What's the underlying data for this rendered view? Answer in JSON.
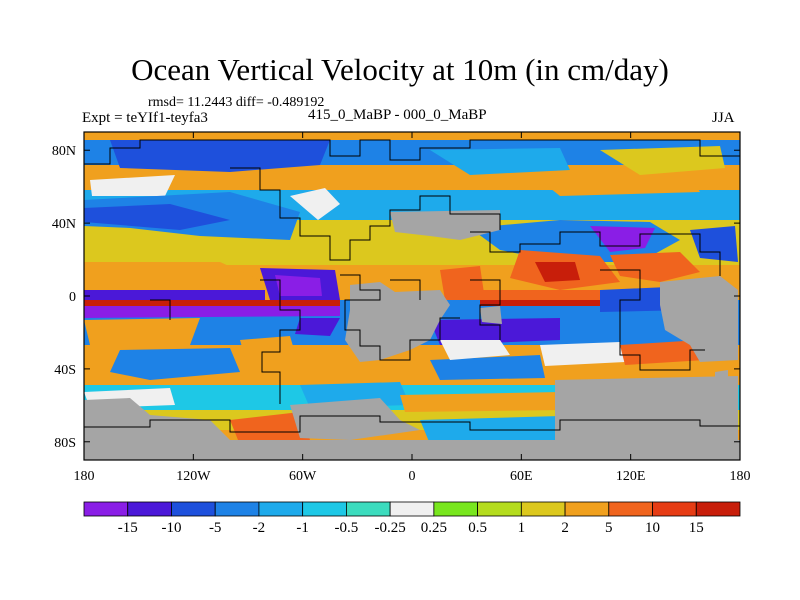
{
  "chart_data": {
    "type": "heatmap",
    "title": "Ocean Vertical Velocity at 10m (in cm/day)",
    "stats": "rmsd= 11.2443  diff= -0.489192",
    "experiment_label": "Expt = teYIf1-teyfa3",
    "subtitle": "415_0_MaBP - 000_0_MaBP",
    "season": "JJA",
    "x_range": [
      -180,
      180
    ],
    "y_range": [
      -90,
      90
    ],
    "x_ticks": [
      {
        "value": -180,
        "label": "180"
      },
      {
        "value": -120,
        "label": "120W"
      },
      {
        "value": -60,
        "label": "60W"
      },
      {
        "value": 0,
        "label": "0"
      },
      {
        "value": 60,
        "label": "60E"
      },
      {
        "value": 120,
        "label": "120E"
      },
      {
        "value": 180,
        "label": "180"
      }
    ],
    "y_ticks": [
      {
        "value": 80,
        "label": "80N"
      },
      {
        "value": 40,
        "label": "40N"
      },
      {
        "value": 0,
        "label": "0"
      },
      {
        "value": -40,
        "label": "40S"
      },
      {
        "value": -80,
        "label": "80S"
      }
    ],
    "colorbar": {
      "labels": [
        "-15",
        "-10",
        "-5",
        "-2",
        "-1",
        "-0.5",
        "-0.25",
        "0.25",
        "0.5",
        "1",
        "2",
        "5",
        "10",
        "15"
      ],
      "colors": [
        "#8a1ee6",
        "#4b18d8",
        "#1e50dc",
        "#1e82e6",
        "#1eaaeb",
        "#1ec8e6",
        "#3cdcbe",
        "#f0f0f0",
        "#78e61e",
        "#b4dc1e",
        "#dcc81e",
        "#f0a01e",
        "#f0641e",
        "#e63c14",
        "#c81e0a"
      ]
    },
    "colors": {
      "land": "#a5a5a5",
      "missing": "#ffffff"
    }
  }
}
